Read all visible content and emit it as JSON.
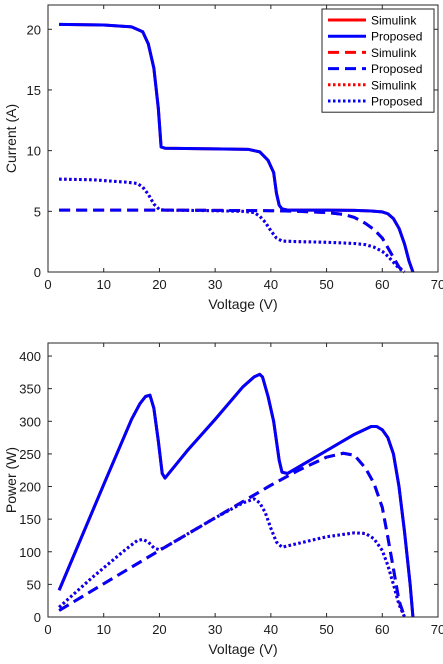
{
  "chart_data": [
    {
      "type": "line",
      "title": "",
      "xlabel": "Voltage (V)",
      "ylabel": "Current (A)",
      "xlim": [
        0,
        70
      ],
      "ylim": [
        0,
        22
      ],
      "xticks": [
        0,
        10,
        20,
        30,
        40,
        50,
        60,
        70
      ],
      "yticks": [
        0,
        5,
        10,
        15,
        20
      ],
      "grid": false,
      "legend_position": "top-right",
      "series": [
        {
          "name": "Simulink",
          "style": "solid",
          "color": "#ff0000",
          "x": [
            2,
            10,
            15,
            17,
            18,
            19,
            19.8,
            20.3,
            21,
            30,
            36,
            38,
            39.5,
            40.5,
            41,
            41.5,
            42,
            43,
            50,
            55,
            58,
            60,
            61,
            62,
            63,
            64,
            64.8,
            65.5
          ],
          "y": [
            20.4,
            20.35,
            20.2,
            19.8,
            18.8,
            16.8,
            13.5,
            10.3,
            10.2,
            10.15,
            10.1,
            9.9,
            9.2,
            8.2,
            6.5,
            5.5,
            5.2,
            5.1,
            5.1,
            5.08,
            5.03,
            4.95,
            4.8,
            4.4,
            3.6,
            2.3,
            0.9,
            0
          ]
        },
        {
          "name": "Proposed",
          "style": "solid",
          "color": "#0000ff",
          "x": [
            2,
            10,
            15,
            17,
            18,
            19,
            19.8,
            20.3,
            21,
            30,
            36,
            38,
            39.5,
            40.5,
            41,
            41.5,
            42,
            43,
            50,
            55,
            58,
            60,
            61,
            62,
            63,
            64,
            64.8,
            65.5
          ],
          "y": [
            20.4,
            20.35,
            20.2,
            19.8,
            18.8,
            16.8,
            13.5,
            10.3,
            10.2,
            10.15,
            10.1,
            9.9,
            9.2,
            8.2,
            6.5,
            5.5,
            5.2,
            5.1,
            5.1,
            5.08,
            5.03,
            4.95,
            4.8,
            4.4,
            3.6,
            2.3,
            0.9,
            0
          ]
        },
        {
          "name": "Simulink",
          "style": "dash",
          "color": "#ff0000",
          "x": [
            2,
            10,
            20,
            30,
            40,
            45,
            50,
            53,
            55,
            57,
            58.5,
            60,
            61,
            62,
            63,
            64
          ],
          "y": [
            5.1,
            5.1,
            5.1,
            5.08,
            5.05,
            5.0,
            4.9,
            4.75,
            4.5,
            4.0,
            3.5,
            2.8,
            2.0,
            1.2,
            0.4,
            0
          ]
        },
        {
          "name": "Proposed",
          "style": "dash",
          "color": "#0000ff",
          "x": [
            2,
            10,
            20,
            30,
            40,
            45,
            50,
            53,
            55,
            57,
            58.5,
            60,
            61,
            62,
            63,
            64
          ],
          "y": [
            5.1,
            5.1,
            5.1,
            5.08,
            5.05,
            5.0,
            4.9,
            4.75,
            4.5,
            4.0,
            3.5,
            2.8,
            2.0,
            1.2,
            0.4,
            0
          ]
        },
        {
          "name": "Simulink",
          "style": "dot",
          "color": "#ff0000",
          "x": [
            2,
            8,
            14,
            16,
            17,
            18,
            19,
            20,
            21,
            30,
            35,
            37,
            38,
            39,
            40,
            41,
            42,
            45,
            50,
            55,
            57,
            58.5,
            60,
            61,
            62,
            63,
            64
          ],
          "y": [
            7.65,
            7.6,
            7.4,
            7.3,
            7.0,
            6.4,
            5.6,
            5.15,
            5.1,
            5.05,
            5.0,
            4.9,
            4.6,
            4.1,
            3.4,
            2.8,
            2.55,
            2.5,
            2.45,
            2.35,
            2.25,
            2.05,
            1.7,
            1.3,
            0.8,
            0.3,
            0
          ]
        },
        {
          "name": "Proposed",
          "style": "dot",
          "color": "#0000ff",
          "x": [
            2,
            8,
            14,
            16,
            17,
            18,
            19,
            20,
            21,
            30,
            35,
            37,
            38,
            39,
            40,
            41,
            42,
            45,
            50,
            55,
            57,
            58.5,
            60,
            61,
            62,
            63,
            64
          ],
          "y": [
            7.65,
            7.6,
            7.4,
            7.3,
            7.0,
            6.4,
            5.6,
            5.15,
            5.1,
            5.05,
            5.0,
            4.9,
            4.6,
            4.1,
            3.4,
            2.8,
            2.55,
            2.5,
            2.45,
            2.35,
            2.25,
            2.05,
            1.7,
            1.3,
            0.8,
            0.3,
            0
          ]
        }
      ]
    },
    {
      "type": "line",
      "title": "",
      "xlabel": "Voltage (V)",
      "ylabel": "Power (W)",
      "xlim": [
        0,
        70
      ],
      "ylim": [
        0,
        420
      ],
      "xticks": [
        0,
        10,
        20,
        30,
        40,
        50,
        60,
        70
      ],
      "yticks": [
        0,
        50,
        100,
        150,
        200,
        250,
        300,
        350,
        400
      ],
      "grid": false,
      "legend_position": "none",
      "series": [
        {
          "name": "Simulink",
          "style": "solid",
          "color": "#ff0000",
          "x": [
            2,
            10,
            15,
            16.5,
            17.5,
            18.3,
            19,
            19.8,
            20.5,
            21,
            25,
            30,
            35,
            37,
            38,
            38.5,
            39.5,
            40.5,
            41.5,
            42,
            43,
            50,
            55,
            58,
            59,
            60,
            61,
            62,
            63,
            64,
            65,
            65.5
          ],
          "y": [
            41,
            203,
            303,
            327,
            338,
            340,
            320,
            270,
            220,
            213,
            255,
            303,
            353,
            368,
            372,
            368,
            338,
            300,
            240,
            222,
            220,
            255,
            280,
            292,
            292,
            287,
            275,
            250,
            200,
            130,
            50,
            0
          ]
        },
        {
          "name": "Proposed",
          "style": "solid",
          "color": "#0000ff",
          "x": [
            2,
            10,
            15,
            16.5,
            17.5,
            18.3,
            19,
            19.8,
            20.5,
            21,
            25,
            30,
            35,
            37,
            38,
            38.5,
            39.5,
            40.5,
            41.5,
            42,
            43,
            50,
            55,
            58,
            59,
            60,
            61,
            62,
            63,
            64,
            65,
            65.5
          ],
          "y": [
            41,
            203,
            303,
            327,
            338,
            340,
            320,
            270,
            220,
            213,
            255,
            303,
            353,
            368,
            372,
            368,
            338,
            300,
            240,
            222,
            220,
            255,
            280,
            292,
            292,
            287,
            275,
            250,
            200,
            130,
            50,
            0
          ]
        },
        {
          "name": "Simulink",
          "style": "dash",
          "color": "#ff0000",
          "x": [
            2,
            10,
            20,
            30,
            40,
            45,
            50,
            53,
            55,
            57,
            58.5,
            60,
            61,
            62,
            63,
            64
          ],
          "y": [
            10,
            51,
            102,
            152,
            202,
            225,
            245,
            251,
            248,
            228,
            205,
            168,
            122,
            74,
            25,
            0
          ]
        },
        {
          "name": "Proposed",
          "style": "dash",
          "color": "#0000ff",
          "x": [
            2,
            10,
            20,
            30,
            40,
            45,
            50,
            53,
            55,
            57,
            58.5,
            60,
            61,
            62,
            63,
            64
          ],
          "y": [
            10,
            51,
            102,
            152,
            202,
            225,
            245,
            251,
            248,
            228,
            205,
            168,
            122,
            74,
            25,
            0
          ]
        },
        {
          "name": "Simulink",
          "style": "dot",
          "color": "#ff0000",
          "x": [
            2,
            8,
            14,
            16,
            17,
            18,
            19,
            20,
            21,
            30,
            35,
            37,
            38,
            39,
            40,
            41,
            42,
            45,
            50,
            55,
            57,
            58.5,
            60,
            61,
            62,
            63,
            64
          ],
          "y": [
            15,
            61,
            104,
            117,
            119,
            115,
            106,
            103,
            107,
            152,
            175,
            181,
            175,
            160,
            136,
            115,
            107,
            113,
            123,
            129,
            128,
            120,
            102,
            79,
            50,
            19,
            0
          ]
        },
        {
          "name": "Proposed",
          "style": "dot",
          "color": "#0000ff",
          "x": [
            2,
            8,
            14,
            16,
            17,
            18,
            19,
            20,
            21,
            30,
            35,
            37,
            38,
            39,
            40,
            41,
            42,
            45,
            50,
            55,
            57,
            58.5,
            60,
            61,
            62,
            63,
            64
          ],
          "y": [
            15,
            61,
            104,
            117,
            119,
            115,
            106,
            103,
            107,
            152,
            175,
            181,
            175,
            160,
            136,
            115,
            107,
            113,
            123,
            129,
            128,
            120,
            102,
            79,
            50,
            19,
            0
          ]
        }
      ]
    }
  ]
}
